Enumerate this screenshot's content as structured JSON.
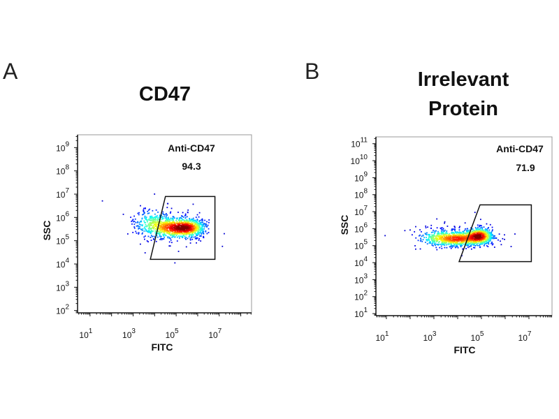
{
  "chart_data": [
    {
      "type": "scatter",
      "panel_letter": "A",
      "title": "CD47",
      "xlabel": "FITC",
      "ylabel": "SSC",
      "xscale": "log",
      "yscale": "log",
      "xlim_log10": [
        0.42,
        8.5
      ],
      "ylim_log10": [
        1.9,
        9.55
      ],
      "xticks_log10": [
        1,
        3,
        5,
        7
      ],
      "yticks_log10": [
        2,
        3,
        4,
        5,
        6,
        7,
        8,
        9
      ],
      "gate": {
        "name": "Anti-CD47",
        "percent": "94.3",
        "polygon_log10": [
          [
            4.5,
            6.9
          ],
          [
            6.8,
            6.9
          ],
          [
            6.8,
            4.2
          ],
          [
            3.8,
            4.2
          ]
        ]
      },
      "clusters_log10": [
        {
          "x": 4.9,
          "y": 5.55,
          "sx": 0.55,
          "sy": 0.22,
          "weight": 0.45
        },
        {
          "x": 5.6,
          "y": 5.55,
          "sx": 0.4,
          "sy": 0.2,
          "weight": 0.35
        },
        {
          "x": 3.9,
          "y": 5.75,
          "sx": 0.45,
          "sy": 0.3,
          "weight": 0.2
        }
      ]
    },
    {
      "type": "scatter",
      "panel_letter": "B",
      "title": [
        "Irrelevant",
        "Protein"
      ],
      "xlabel": "FITC",
      "ylabel": "SSC",
      "xscale": "log",
      "yscale": "log",
      "xlim_log10": [
        0.56,
        7.97
      ],
      "ylim_log10": [
        0.88,
        11.4
      ],
      "xticks_log10": [
        1,
        3,
        5,
        7
      ],
      "yticks_log10": [
        1,
        2,
        3,
        4,
        5,
        6,
        7,
        8,
        9,
        10,
        11
      ],
      "gate": {
        "name": "Anti-CD47",
        "percent": "71.9",
        "polygon_log10": [
          [
            4.94,
            7.4
          ],
          [
            7.1,
            7.4
          ],
          [
            7.1,
            4.06
          ],
          [
            4.06,
            4.06
          ]
        ]
      },
      "clusters_log10": [
        {
          "x": 4.9,
          "y": 5.55,
          "sx": 0.3,
          "sy": 0.25,
          "weight": 0.45
        },
        {
          "x": 4.05,
          "y": 5.4,
          "sx": 0.45,
          "sy": 0.22,
          "weight": 0.35
        },
        {
          "x": 3.2,
          "y": 5.45,
          "sx": 0.45,
          "sy": 0.25,
          "weight": 0.2
        }
      ]
    }
  ],
  "colors": {
    "axis": "#111111",
    "gate": "#111111"
  }
}
